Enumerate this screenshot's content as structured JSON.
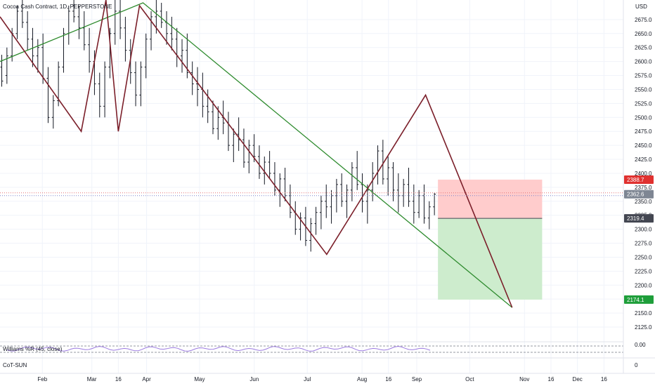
{
  "header": {
    "symbol_title": "Cocoa Cash Contract, 1D, PEPPERSTONE"
  },
  "panes": {
    "williams_label": "Williams %R (45, close)",
    "williams_value": "0.00",
    "cot_label": "CoT-SUN",
    "cot_value": "0"
  },
  "colors": {
    "candles": "#131722",
    "zigzag": "#7b1f2a",
    "trendline": "#2e8b2e",
    "stop_zone": "#ffcccc",
    "target_zone": "#cdeccd",
    "stop_tag": "#e0312f",
    "target_tag": "#1e9e3a",
    "current_tag": "#7e8693",
    "entry_tag": "#434651",
    "indicator": "#9c7be0"
  },
  "chart_data": {
    "type": "ohlc-bar",
    "title": "Cocoa Cash Contract, 1D, PEPPERSTONE",
    "currency": "USD",
    "ylim": [
      2120,
      2710
    ],
    "y_ticks": [
      2125,
      2150,
      2175,
      2200,
      2225,
      2250,
      2275,
      2300,
      2325,
      2350,
      2375,
      2400,
      2425,
      2450,
      2475,
      2500,
      2525,
      2550,
      2575,
      2600,
      2625,
      2650,
      2675
    ],
    "x_ticks": [
      {
        "label": "Feb",
        "day": 31
      },
      {
        "label": "Mar",
        "day": 59
      },
      {
        "label": "16",
        "day": 74
      },
      {
        "label": "Apr",
        "day": 90
      },
      {
        "label": "May",
        "day": 120
      },
      {
        "label": "Jun",
        "day": 151
      },
      {
        "label": "Jul",
        "day": 181
      },
      {
        "label": "Aug",
        "day": 212
      },
      {
        "label": "16",
        "day": 227
      },
      {
        "label": "Sep",
        "day": 243
      },
      {
        "label": "Oct",
        "day": 273
      },
      {
        "label": "Nov",
        "day": 304
      },
      {
        "label": "16",
        "day": 319
      },
      {
        "label": "Dec",
        "day": 334
      },
      {
        "label": "16",
        "day": 349
      }
    ],
    "price_labels": {
      "stop": 2388.7,
      "current": 2362.6,
      "entry": 2319.4,
      "target": 2174.1
    },
    "zigzag": [
      {
        "day": 7,
        "price": 2680
      },
      {
        "day": 53,
        "price": 2475
      },
      {
        "day": 67,
        "price": 2710
      },
      {
        "day": 74,
        "price": 2475
      },
      {
        "day": 86,
        "price": 2700
      },
      {
        "day": 192,
        "price": 2255
      },
      {
        "day": 248,
        "price": 2540
      },
      {
        "day": 297,
        "price": 2160
      }
    ],
    "trendline": [
      {
        "day": 7,
        "price": 2600
      },
      {
        "day": 88,
        "price": 2705
      },
      {
        "day": 297,
        "price": 2160
      }
    ],
    "position": {
      "start_day": 255,
      "end_day": 314,
      "stop": 2388.7,
      "entry": 2319.4,
      "target": 2174.1
    },
    "series": [
      {
        "ohlc": [
          [
            2590,
            2612,
            2555,
            2565
          ],
          [
            2575,
            2625,
            2560,
            2610
          ],
          [
            2610,
            2660,
            2600,
            2650
          ],
          [
            2650,
            2700,
            2640,
            2690
          ],
          [
            2690,
            2710,
            2660,
            2670
          ],
          [
            2670,
            2690,
            2620,
            2640
          ],
          [
            2640,
            2660,
            2590,
            2610
          ],
          [
            2610,
            2640,
            2580,
            2625
          ],
          [
            2625,
            2650,
            2560,
            2570
          ],
          [
            2570,
            2590,
            2490,
            2500
          ],
          [
            2500,
            2540,
            2480,
            2530
          ],
          [
            2530,
            2600,
            2520,
            2590
          ],
          [
            2590,
            2660,
            2580,
            2650
          ],
          [
            2650,
            2700,
            2630,
            2690
          ],
          [
            2690,
            2710,
            2670,
            2680
          ],
          [
            2680,
            2700,
            2640,
            2660
          ],
          [
            2660,
            2690,
            2620,
            2630
          ],
          [
            2630,
            2660,
            2580,
            2600
          ],
          [
            2600,
            2620,
            2540,
            2560
          ],
          [
            2560,
            2580,
            2500,
            2520
          ],
          [
            2520,
            2600,
            2500,
            2590
          ],
          [
            2590,
            2660,
            2570,
            2650
          ],
          [
            2650,
            2710,
            2630,
            2690
          ],
          [
            2690,
            2710,
            2640,
            2660
          ],
          [
            2660,
            2680,
            2600,
            2620
          ],
          [
            2620,
            2640,
            2560,
            2580
          ],
          [
            2580,
            2600,
            2520,
            2540
          ],
          [
            2540,
            2600,
            2520,
            2590
          ],
          [
            2590,
            2650,
            2570,
            2640
          ],
          [
            2640,
            2690,
            2620,
            2680
          ],
          [
            2680,
            2710,
            2650,
            2690
          ],
          [
            2690,
            2705,
            2660,
            2670
          ],
          [
            2670,
            2690,
            2630,
            2650
          ],
          [
            2650,
            2680,
            2620,
            2640
          ],
          [
            2640,
            2660,
            2590,
            2610
          ],
          [
            2610,
            2640,
            2580,
            2620
          ],
          [
            2620,
            2650,
            2570,
            2580
          ],
          [
            2580,
            2600,
            2540,
            2560
          ],
          [
            2560,
            2590,
            2520,
            2550
          ],
          [
            2550,
            2580,
            2500,
            2520
          ],
          [
            2520,
            2550,
            2490,
            2510
          ],
          [
            2510,
            2530,
            2470,
            2480
          ],
          [
            2480,
            2520,
            2460,
            2500
          ],
          [
            2500,
            2530,
            2470,
            2490
          ],
          [
            2490,
            2510,
            2440,
            2450
          ],
          [
            2450,
            2480,
            2420,
            2470
          ],
          [
            2470,
            2500,
            2440,
            2460
          ],
          [
            2460,
            2480,
            2410,
            2420
          ],
          [
            2420,
            2460,
            2400,
            2450
          ],
          [
            2450,
            2470,
            2420,
            2430
          ],
          [
            2430,
            2450,
            2390,
            2400
          ],
          [
            2400,
            2430,
            2380,
            2420
          ],
          [
            2420,
            2440,
            2390,
            2400
          ],
          [
            2400,
            2420,
            2360,
            2370
          ],
          [
            2370,
            2400,
            2340,
            2390
          ],
          [
            2390,
            2410,
            2350,
            2360
          ],
          [
            2360,
            2380,
            2320,
            2330
          ],
          [
            2330,
            2350,
            2290,
            2300
          ],
          [
            2300,
            2330,
            2280,
            2320
          ],
          [
            2320,
            2340,
            2270,
            2280
          ],
          [
            2280,
            2320,
            2260,
            2310
          ],
          [
            2310,
            2340,
            2290,
            2330
          ],
          [
            2330,
            2360,
            2300,
            2350
          ],
          [
            2350,
            2380,
            2320,
            2340
          ],
          [
            2340,
            2370,
            2310,
            2360
          ],
          [
            2360,
            2390,
            2330,
            2380
          ],
          [
            2380,
            2400,
            2340,
            2350
          ],
          [
            2350,
            2380,
            2320,
            2370
          ],
          [
            2370,
            2420,
            2350,
            2410
          ],
          [
            2410,
            2440,
            2370,
            2380
          ],
          [
            2380,
            2400,
            2330,
            2350
          ],
          [
            2350,
            2380,
            2310,
            2370
          ],
          [
            2370,
            2420,
            2350,
            2400
          ],
          [
            2400,
            2450,
            2380,
            2440
          ],
          [
            2440,
            2460,
            2380,
            2390
          ],
          [
            2390,
            2430,
            2360,
            2410
          ],
          [
            2410,
            2420,
            2350,
            2370
          ],
          [
            2370,
            2400,
            2330,
            2360
          ],
          [
            2360,
            2390,
            2340,
            2380
          ],
          [
            2380,
            2410,
            2340,
            2350
          ],
          [
            2350,
            2380,
            2310,
            2330
          ],
          [
            2330,
            2370,
            2320,
            2360
          ],
          [
            2360,
            2380,
            2310,
            2320
          ],
          [
            2320,
            2350,
            2300,
            2340
          ],
          [
            2340,
            2365,
            2325,
            2362.6
          ]
        ]
      }
    ],
    "williams_r": {
      "name": "Williams %R (45, close)",
      "level": 0.0
    },
    "cot": {
      "name": "CoT-SUN",
      "level": 0
    }
  }
}
